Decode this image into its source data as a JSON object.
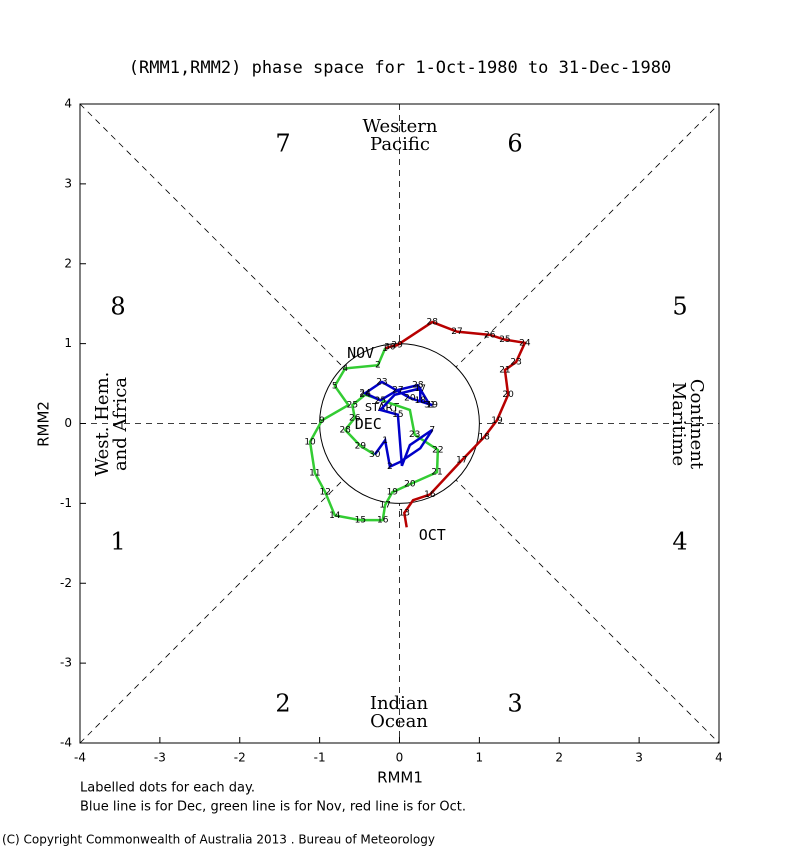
{
  "chart_data": {
    "type": "line",
    "title": "(RMM1,RMM2) phase space for  1-Oct-1980 to 31-Dec-1980",
    "xlabel": "RMM1",
    "ylabel": "RMM2",
    "xlim": [
      -4,
      4
    ],
    "ylim": [
      -4,
      4
    ],
    "xticks": [
      -4,
      -3,
      -2,
      -1,
      0,
      1,
      2,
      3,
      4
    ],
    "yticks": [
      -4,
      -3,
      -2,
      -1,
      0,
      1,
      2,
      3,
      4
    ],
    "phases": [
      "1",
      "2",
      "3",
      "4",
      "5",
      "6",
      "7",
      "8"
    ],
    "regions": {
      "top": [
        "Western",
        "Pacific"
      ],
      "bottom": [
        "Indian",
        "Ocean"
      ],
      "left": [
        "West. Hem.",
        "and Africa"
      ],
      "right": [
        "Maritime",
        "Continent"
      ]
    },
    "start_label": "START",
    "notes": [
      "Labelled dots for each day.",
      "Blue line is for Dec, green line is for Nov, red line is for Oct."
    ],
    "copyright": "(C) Copyright Commonwealth of Australia 2013 . Bureau of Meteorology",
    "series": [
      {
        "name": "OCT",
        "color": "#b80000",
        "x": [
          0.09,
          0.06,
          0.17,
          0.38,
          0.78,
          1.06,
          1.22,
          1.36,
          1.32,
          1.46,
          1.57,
          1.32,
          1.13,
          0.72,
          0.41,
          -0.03,
          -0.12,
          -0.18
        ],
        "values": [
          -1.3,
          -1.12,
          -0.96,
          -0.89,
          -0.46,
          -0.17,
          0.04,
          0.36,
          0.67,
          0.77,
          1.01,
          1.05,
          1.11,
          1.15,
          1.27,
          0.98,
          0.96,
          0.94
        ],
        "labels": [
          null,
          "13",
          null,
          "16",
          "17",
          "18",
          "19",
          "20",
          "21",
          "23",
          "24",
          "25",
          "26",
          "27",
          "28",
          "29",
          "30",
          null
        ]
      },
      {
        "name": "NOV",
        "color": "#33cc33",
        "x": [
          -0.18,
          -0.27,
          -0.68,
          -0.81,
          -0.64,
          -0.97,
          -1.12,
          -1.06,
          -0.93,
          -0.81,
          -0.49,
          -0.21,
          -0.18,
          -0.09,
          0.13,
          0.47,
          0.48,
          0.19,
          0.13,
          -0.43,
          -0.59,
          -0.56,
          -0.68,
          -0.49,
          -0.31
        ],
        "values": [
          0.94,
          0.73,
          0.69,
          0.47,
          0.23,
          0.04,
          -0.23,
          -0.62,
          -0.86,
          -1.15,
          -1.21,
          -1.21,
          -1.02,
          -0.86,
          -0.76,
          -0.61,
          -0.33,
          -0.14,
          0.17,
          0.36,
          0.23,
          0.07,
          -0.08,
          -0.28,
          -0.39
        ],
        "labels": [
          "1",
          "2",
          "4",
          "5",
          null,
          "9",
          "10",
          "11",
          "12",
          "14",
          "15",
          "16",
          "17",
          "19",
          "20",
          "21",
          "22",
          "23",
          null,
          "24",
          "25",
          "26",
          "28",
          "29",
          "30"
        ]
      },
      {
        "name": "DEC",
        "color": "#0000c8",
        "x": [
          -0.31,
          -0.18,
          -0.12,
          0.01,
          0.26,
          0.41,
          0.13,
          0.03,
          -0.02,
          -0.24,
          -0.06,
          0.26,
          0.26,
          0.41,
          0.13,
          -0.22,
          -0.43,
          -0.24,
          -0.02,
          0.23,
          0.38
        ],
        "values": [
          -0.39,
          -0.21,
          -0.54,
          -0.48,
          -0.31,
          -0.08,
          -0.27,
          -0.53,
          0.11,
          0.17,
          0.36,
          0.44,
          0.29,
          0.23,
          0.32,
          0.52,
          0.38,
          0.29,
          0.42,
          0.48,
          0.23
        ],
        "labels": [
          null,
          "1",
          "2",
          null,
          null,
          "7",
          null,
          null,
          "15",
          null,
          null,
          "17",
          "18",
          "19",
          "20",
          "23",
          "24",
          "25",
          "27",
          "28",
          "31"
        ]
      }
    ]
  }
}
